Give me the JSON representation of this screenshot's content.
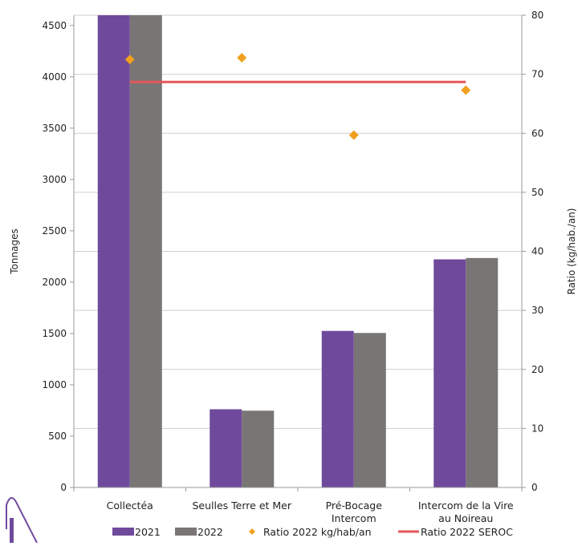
{
  "chart_data": {
    "type": "bar",
    "categories": [
      [
        "Collectéa"
      ],
      [
        "Seulles Terre et Mer"
      ],
      [
        "Pré-Bocage",
        "Intercom"
      ],
      [
        "Intercom de la Vire",
        "au Noireau"
      ]
    ],
    "series": [
      {
        "name": "2021",
        "kind": "bar",
        "axis": "left",
        "color": "#6f4a9c",
        "values": [
          4600,
          762,
          1525,
          2222
        ]
      },
      {
        "name": "2022",
        "kind": "bar",
        "axis": "left",
        "color": "#787574",
        "values": [
          4600,
          748,
          1505,
          2235
        ]
      },
      {
        "name": "Ratio 2022 kg/hab/an",
        "kind": "scatter",
        "axis": "right",
        "color": "#f0a01e",
        "values": [
          72.5,
          72.8,
          59.7,
          67.3
        ]
      },
      {
        "name": "Ratio 2022 SEROC",
        "kind": "line",
        "axis": "right",
        "color": "#e5565a",
        "values": [
          68.7,
          68.7,
          68.7,
          68.7
        ]
      }
    ],
    "ylabel": "Tonnages",
    "y2label": "Ratio (kg/hab./an)",
    "ylim": [
      0,
      4600
    ],
    "yticks": [
      0,
      500,
      1000,
      1500,
      2000,
      2500,
      3000,
      3500,
      4000,
      4500
    ],
    "y2lim": [
      0,
      80
    ],
    "y2ticks": [
      0,
      10,
      20,
      30,
      40,
      50,
      60,
      70,
      80
    ],
    "grid": true,
    "legend_position": "bottom"
  }
}
